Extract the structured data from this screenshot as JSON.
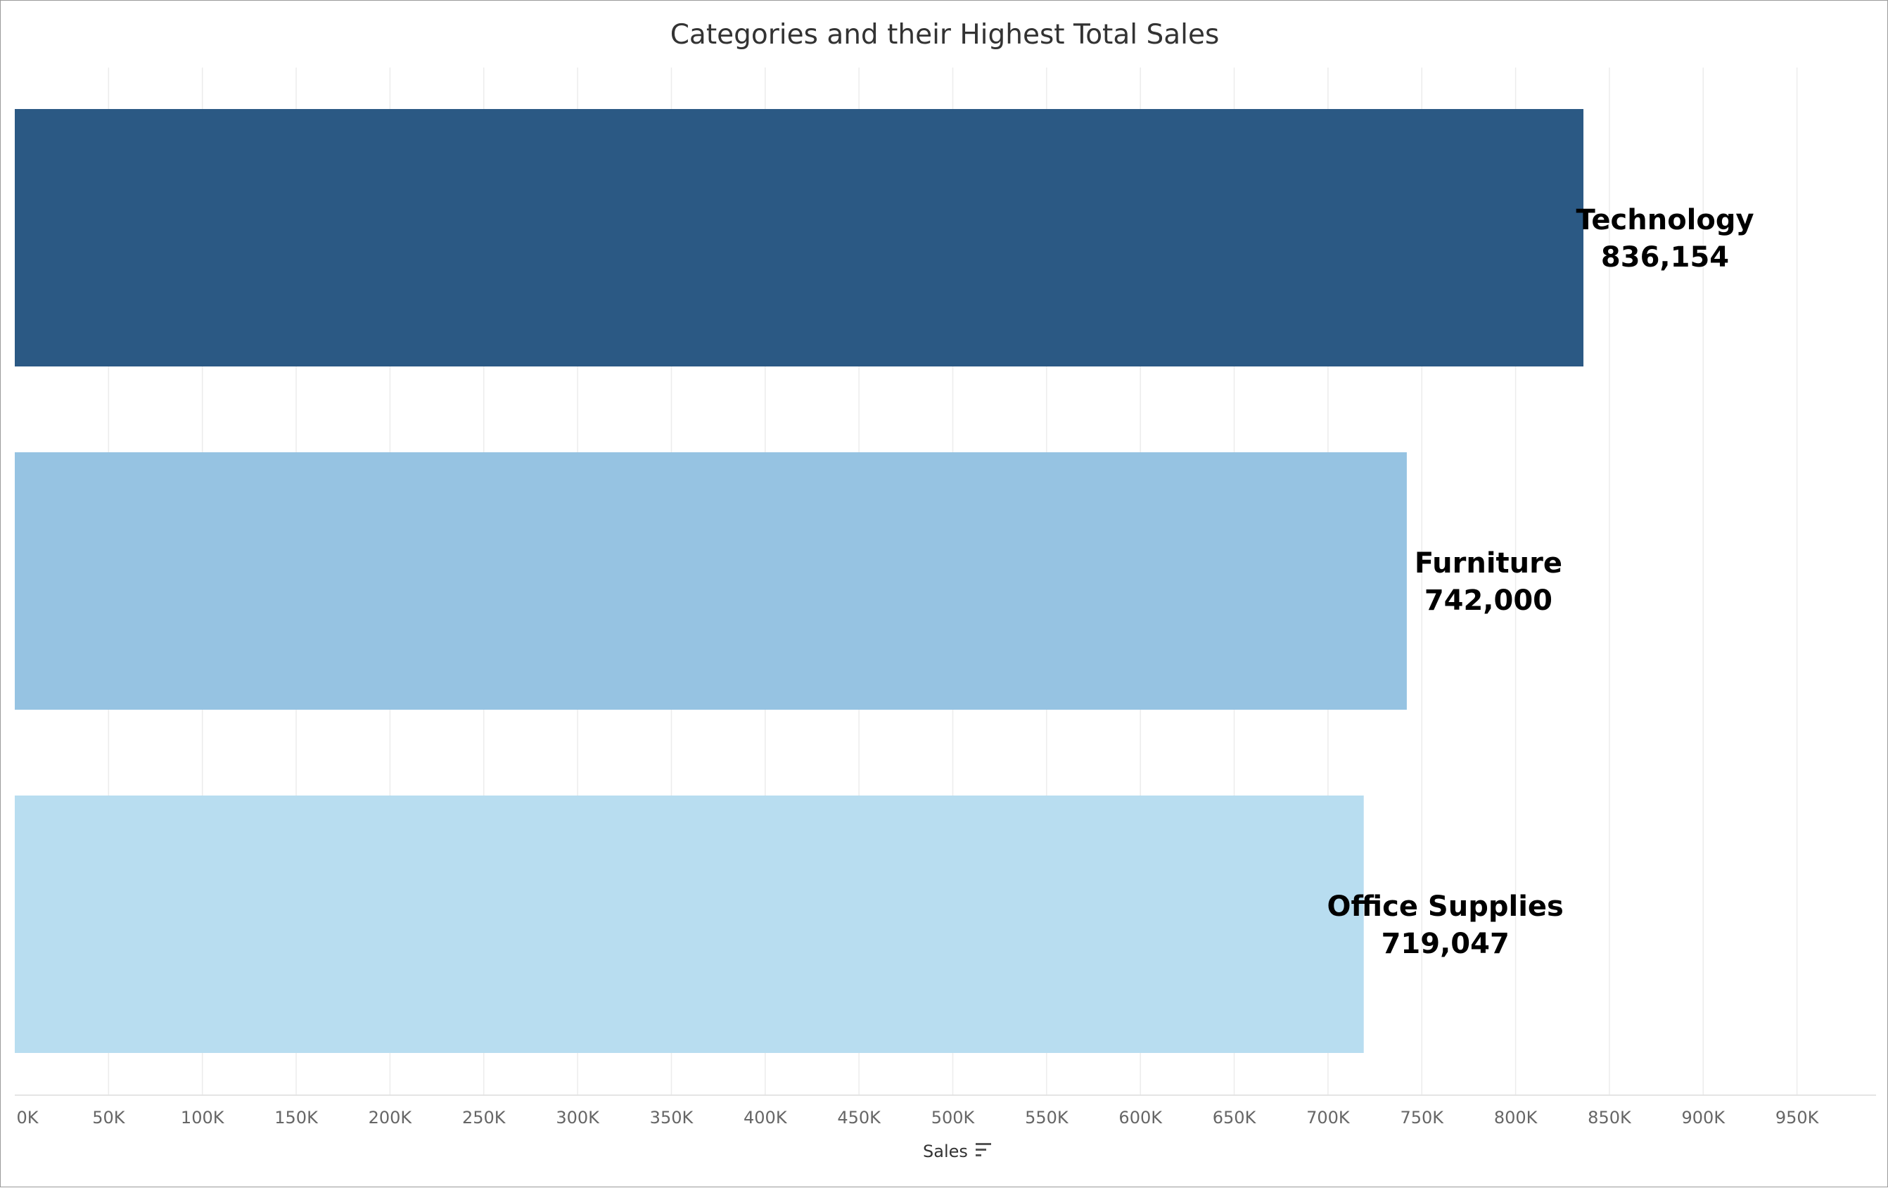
{
  "chart_data": {
    "type": "bar",
    "orientation": "horizontal",
    "title": "Categories and their Highest Total Sales",
    "xlabel": "Sales",
    "ylabel": "",
    "categories": [
      "Technology",
      "Furniture",
      "Office Supplies"
    ],
    "values": [
      836154,
      742000,
      719047
    ],
    "value_labels": [
      "836,154",
      "742,000",
      "719,047"
    ],
    "colors": [
      "#2b5984",
      "#96c3e2",
      "#b8ddf0"
    ],
    "xlim": [
      0,
      1000000
    ],
    "x_ticks": [
      0,
      50000,
      100000,
      150000,
      200000,
      250000,
      300000,
      350000,
      400000,
      450000,
      500000,
      550000,
      600000,
      650000,
      700000,
      750000,
      800000,
      850000,
      900000,
      950000
    ],
    "x_tick_labels": [
      "0K",
      "50K",
      "100K",
      "150K",
      "200K",
      "250K",
      "300K",
      "350K",
      "400K",
      "450K",
      "500K",
      "550K",
      "600K",
      "650K",
      "700K",
      "750K",
      "800K",
      "850K",
      "900K",
      "950K"
    ],
    "grid": "vertical",
    "legend": "none",
    "sort_icon": "sort-descending-icon"
  }
}
